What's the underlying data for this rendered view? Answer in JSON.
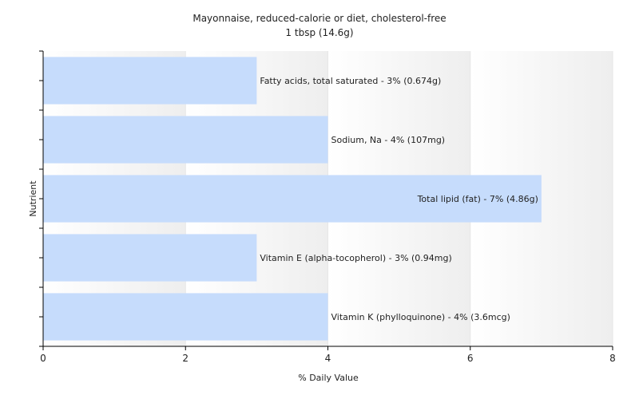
{
  "chart_data": {
    "type": "bar",
    "orientation": "horizontal",
    "title": "Mayonnaise, reduced-calorie or diet, cholesterol-free",
    "subtitle": "1 tbsp (14.6g)",
    "xlabel": "% Daily Value",
    "ylabel": "Nutrient",
    "xlim": [
      0,
      8
    ],
    "xticks": [
      0,
      2,
      4,
      6,
      8
    ],
    "grid": true,
    "legend": "none",
    "bar_color": "#c6dcfc",
    "categories": [
      "Fatty acids, total saturated",
      "Sodium, Na",
      "Total lipid (fat)",
      "Vitamin E (alpha-tocopherol)",
      "Vitamin K (phylloquinone)"
    ],
    "values": [
      3,
      4,
      7,
      3,
      4
    ],
    "labels": [
      "Fatty acids, total saturated - 3% (0.674g)",
      "Sodium, Na - 4% (107mg)",
      "Total lipid (fat) - 7% (4.86g)",
      "Vitamin E (alpha-tocopherol) - 3% (0.94mg)",
      "Vitamin K (phylloquinone) - 4% (3.6mcg)"
    ]
  }
}
